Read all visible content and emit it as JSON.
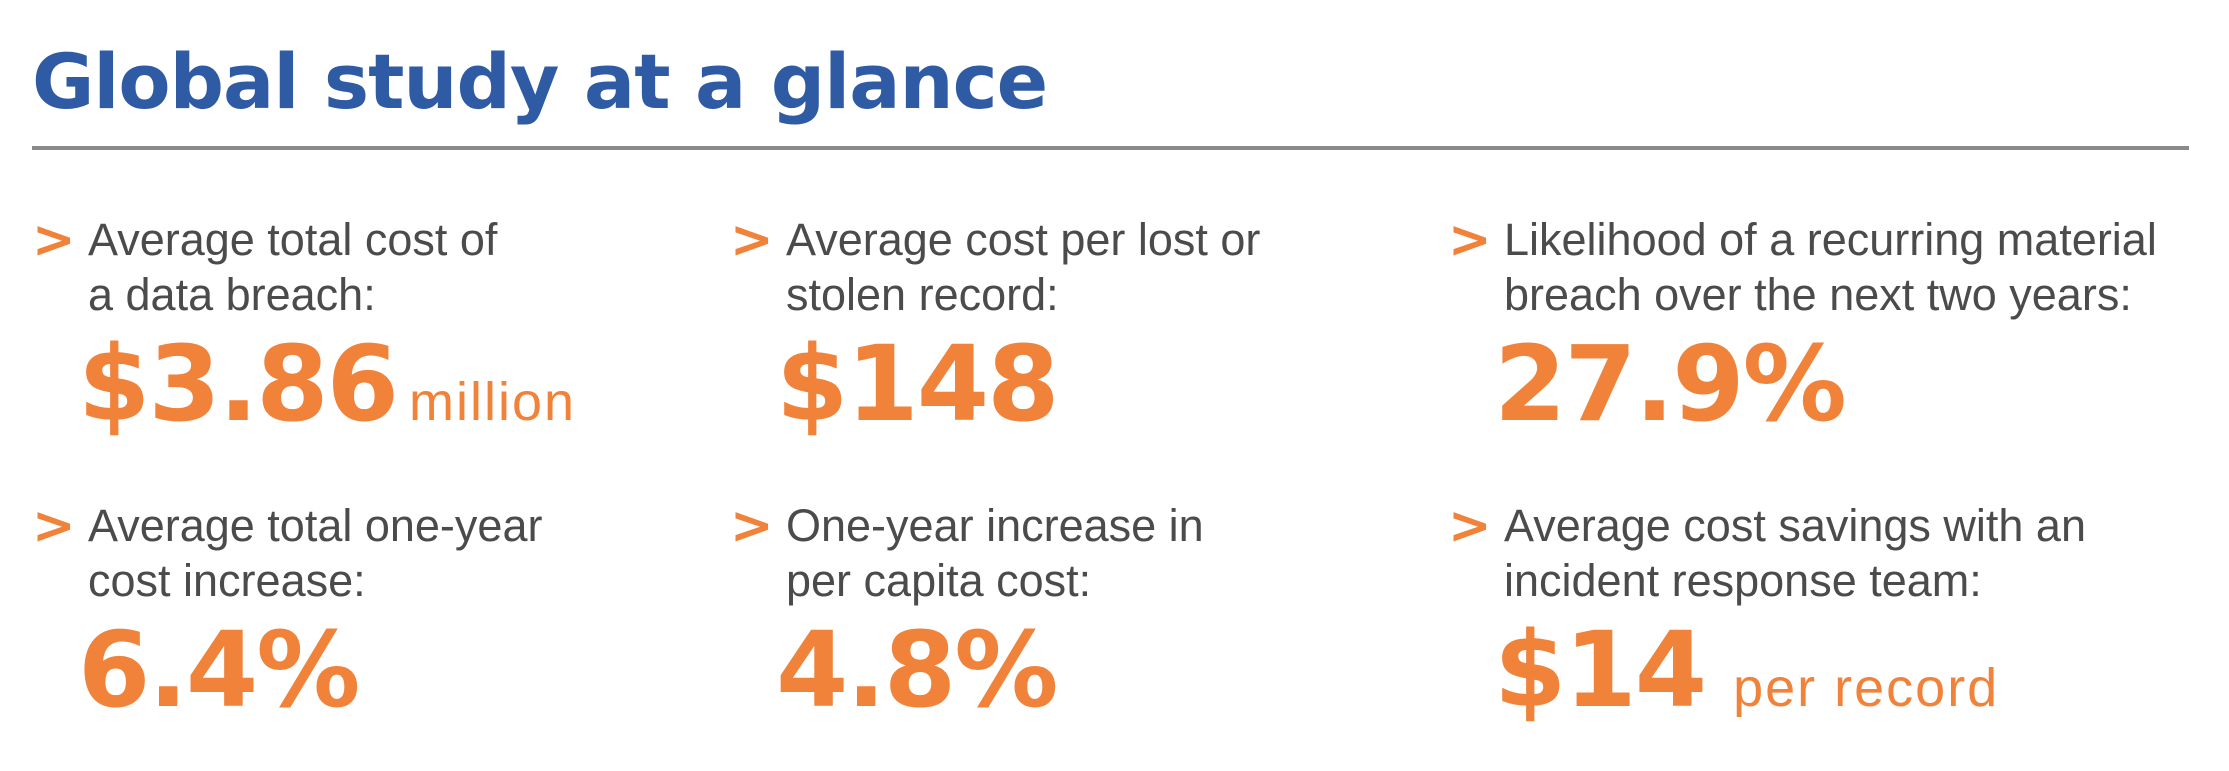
{
  "title": "Global study at a glance",
  "colors": {
    "title": "#2f5ba5",
    "accent": "#f0823a",
    "label": "#4b4b4b",
    "rule": "#8a8a8a"
  },
  "stats": [
    {
      "label": "Average total cost of\na data breach:",
      "value": "$3.86",
      "unit": "million"
    },
    {
      "label": "Average cost per lost or\nstolen record:",
      "value": "$148",
      "unit": ""
    },
    {
      "label": "Likelihood of a recurring material\nbreach over the next two years:",
      "value": "27.9%",
      "unit": ""
    },
    {
      "label": "Average total one-year\ncost increase:",
      "value": "6.4%",
      "unit": ""
    },
    {
      "label": "One-year increase in\nper capita cost:",
      "value": "4.8%",
      "unit": ""
    },
    {
      "label": "Average cost savings with an\nincident response team:",
      "value": "$14",
      "unit": "per record"
    }
  ]
}
